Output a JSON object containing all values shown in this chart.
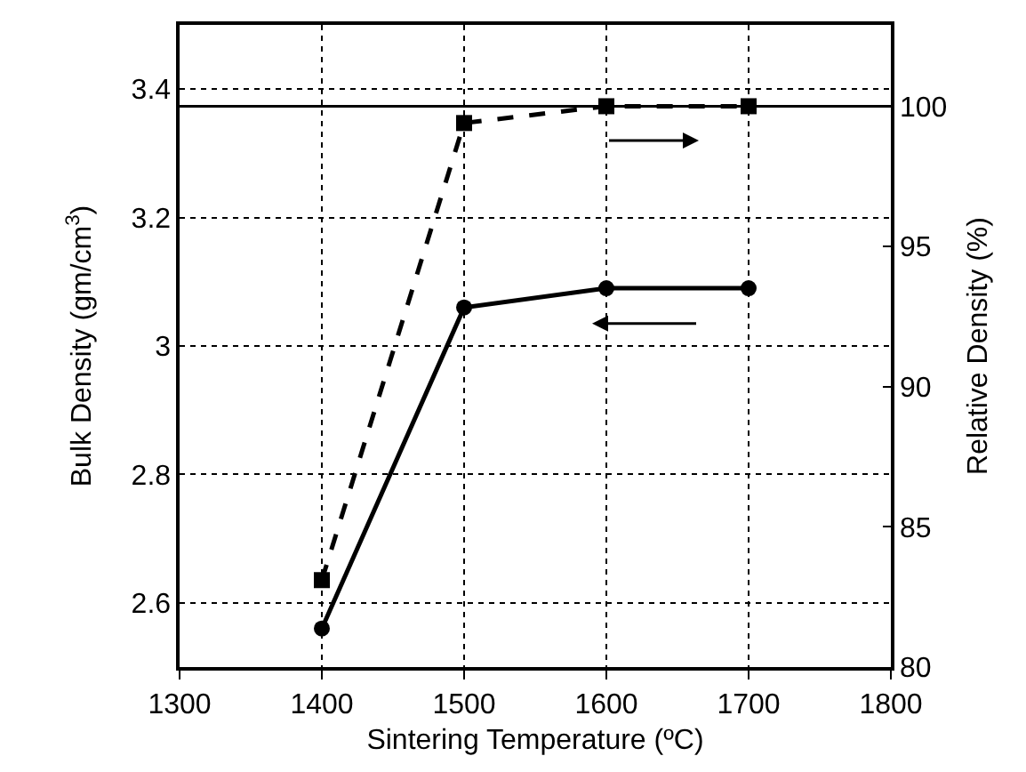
{
  "chart_data": {
    "type": "line",
    "xlabel": "Sintering Temperature (ºC)",
    "ylabel": "Bulk Density (gm/cm$^{3}$)",
    "y2label": "Relative Density (%)",
    "x": [
      1400,
      1500,
      1600,
      1700
    ],
    "series": [
      {
        "color": "#000000",
        "values": [
          2.56,
          3.06,
          3.09,
          3.09
        ],
        "marker": "circle",
        "line_style": "solid"
      },
      {
        "color": "#000000",
        "values": [
          83.1,
          99.4,
          100,
          100
        ],
        "marker": "square",
        "line_style": "dashed",
        "axis": "y2"
      }
    ],
    "xlim": [
      1300,
      1800
    ],
    "xticks": [
      1300,
      1400,
      1500,
      1600,
      1700,
      1800
    ],
    "ylim": [
      2.5,
      3.5
    ],
    "yticks": [
      {
        "value": 2.5,
        "label": null
      },
      2.6,
      2.8,
      3,
      3.2,
      3.4,
      {
        "value": 3.5,
        "label": null
      }
    ],
    "y2lim": [
      80,
      102.9
    ],
    "y2ticks": [
      80,
      85,
      90,
      95,
      100
    ],
    "ref_lines": [
      {
        "axis": "y2",
        "value": 100,
        "color": "#000000",
        "line_style": "solid"
      }
    ],
    "grid": true
  }
}
